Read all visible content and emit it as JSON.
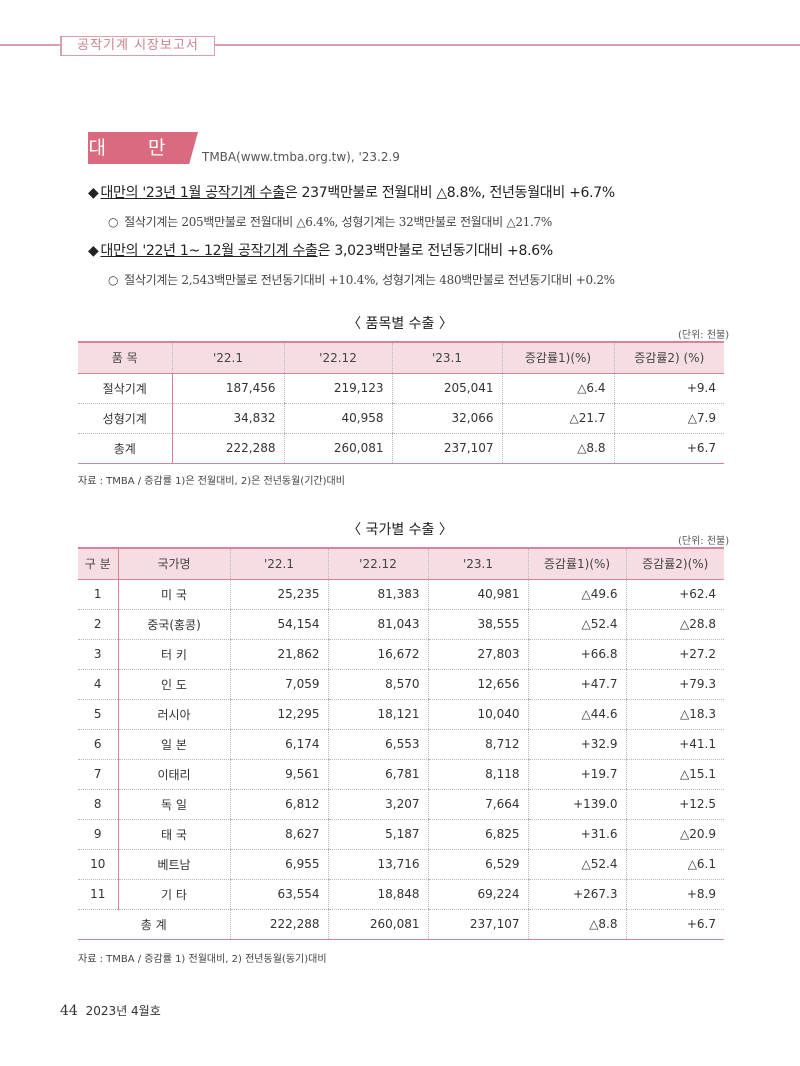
{
  "header": {
    "tab": "공작기계 시장보고서"
  },
  "country": {
    "name": "대 만",
    "source": "TMBA(www.tmba.org.tw), '23.2.9"
  },
  "bullets": [
    {
      "underlined": "대만의 '23년 1월 공작기계 수출",
      "rest": "은 237백만불로 전월대비 △8.8%, 전년동월대비 +6.7%",
      "sub": "절삭기계는 205백만불로 전월대비 △6.4%, 성형기계는 32백만불로 전월대비 △21.7%"
    },
    {
      "underlined": "대만의 '22년 1~ 12월 공작기계 수출",
      "rest": "은 3,023백만불로 전년동기대비 +8.6%",
      "sub": "절삭기계는 2,543백만불로 전년동기대비 +10.4%, 성형기계는 480백만불로 전년동기대비 +0.2%"
    }
  ],
  "table1": {
    "title": "〈 품목별 수출 〉",
    "unit": "(단위: 천불)",
    "headers": [
      "품 목",
      "'22.1",
      "'22.12",
      "'23.1",
      "증감률1)(%)",
      "증감률2) (%)"
    ],
    "rows": [
      [
        "절삭기계",
        "187,456",
        "219,123",
        "205,041",
        "△6.4",
        "+9.4"
      ],
      [
        "성형기계",
        "34,832",
        "40,958",
        "32,066",
        "△21.7",
        "△7.9"
      ],
      [
        "총계",
        "222,288",
        "260,081",
        "237,107",
        "△8.8",
        "+6.7"
      ]
    ],
    "note": "자료 : TMBA / 증감률 1)은 전월대비, 2)은 전년동월(기간)대비"
  },
  "table2": {
    "title": "〈 국가별 수출 〉",
    "unit": "(단위: 천불)",
    "headers": [
      "구 분",
      "국가명",
      "'22.1",
      "'22.12",
      "'23.1",
      "증감률1)(%)",
      "증감률2)(%)"
    ],
    "rows": [
      [
        "1",
        "미 국",
        "25,235",
        "81,383",
        "40,981",
        "△49.6",
        "+62.4"
      ],
      [
        "2",
        "중국(홍콩)",
        "54,154",
        "81,043",
        "38,555",
        "△52.4",
        "△28.8"
      ],
      [
        "3",
        "터 키",
        "21,862",
        "16,672",
        "27,803",
        "+66.8",
        "+27.2"
      ],
      [
        "4",
        "인 도",
        "7,059",
        "8,570",
        "12,656",
        "+47.7",
        "+79.3"
      ],
      [
        "5",
        "러시아",
        "12,295",
        "18,121",
        "10,040",
        "△44.6",
        "△18.3"
      ],
      [
        "6",
        "일 본",
        "6,174",
        "6,553",
        "8,712",
        "+32.9",
        "+41.1"
      ],
      [
        "7",
        "이태리",
        "9,561",
        "6,781",
        "8,118",
        "+19.7",
        "△15.1"
      ],
      [
        "8",
        "독 일",
        "6,812",
        "3,207",
        "7,664",
        "+139.0",
        "+12.5"
      ],
      [
        "9",
        "태 국",
        "8,627",
        "5,187",
        "6,825",
        "+31.6",
        "△20.9"
      ],
      [
        "10",
        "베트남",
        "6,955",
        "13,716",
        "6,529",
        "△52.4",
        "△6.1"
      ],
      [
        "11",
        "기 타",
        "63,554",
        "18,848",
        "69,224",
        "+267.3",
        "+8.9"
      ]
    ],
    "total": [
      "총 계",
      "222,288",
      "260,081",
      "237,107",
      "△8.8",
      "+6.7"
    ],
    "note": "자료 : TMBA / 증감률 1) 전월대비, 2) 전년동월(동기)대비"
  },
  "footer": {
    "page": "44",
    "issue": "2023년 4월호"
  }
}
